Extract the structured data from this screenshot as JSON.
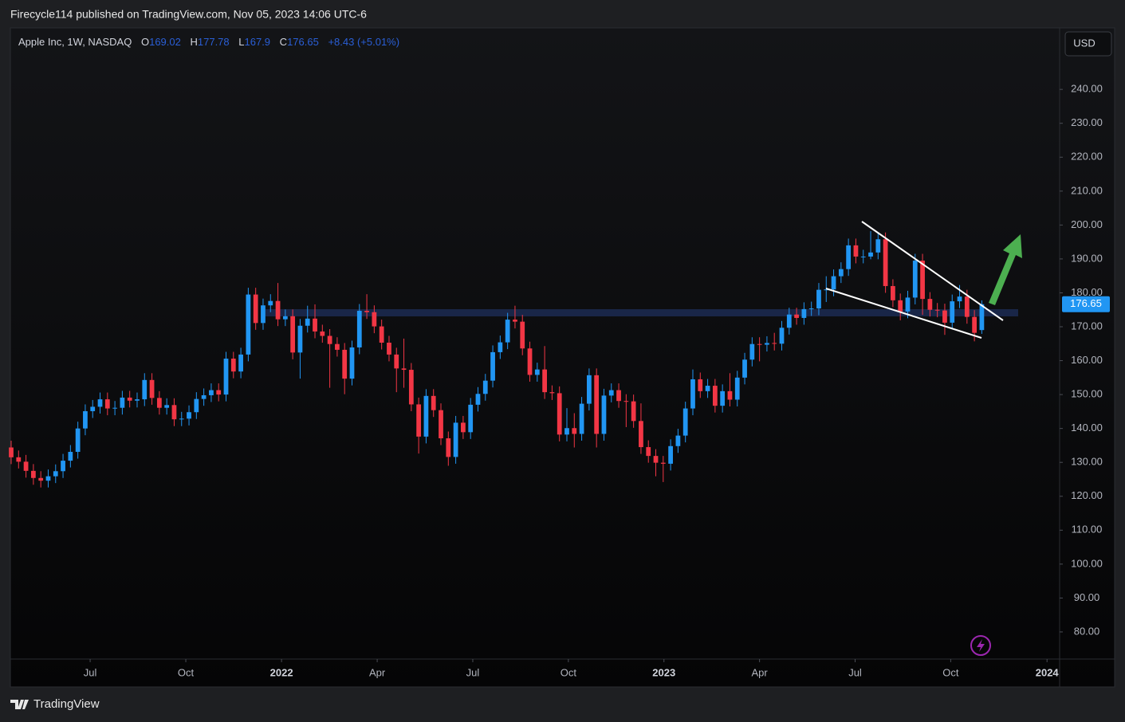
{
  "header": "Firecycle114 published on TradingView.com, Nov 05, 2023 14:06 UTC-6",
  "brand": "TradingView",
  "chart_data": {
    "type": "candlestick",
    "symbol": "Apple Inc, 1W, NASDAQ",
    "ohlc_letters": [
      "O",
      "H",
      "L",
      "C"
    ],
    "change_label": "+8.43 (+5.01%)",
    "currency": "USD",
    "up_color": "#2196f3",
    "down_color": "#f23645",
    "open": [
      134.4,
      131.5,
      130.2,
      127.5,
      125.4,
      124.6,
      125.9,
      127.4,
      130.5,
      133.1,
      140.0,
      145.1,
      146.4,
      148.6,
      145.9,
      146.1,
      149.1,
      148.2,
      148.6,
      154.3,
      149.0,
      146.1,
      146.9,
      142.7,
      142.9,
      144.8,
      148.7,
      149.8,
      151.3,
      150.0,
      160.6,
      156.8,
      161.8,
      179.5,
      171.1,
      176.3,
      177.6,
      172.2,
      173.1,
      162.4,
      170.3,
      172.4,
      168.6,
      167.3,
      164.9,
      163.2,
      154.7,
      163.9,
      174.7,
      174.3,
      170.1,
      165.3,
      161.8,
      157.7,
      157.3,
      147.1,
      137.6,
      149.6,
      145.4,
      137.1,
      131.6,
      141.7,
      138.9,
      147.0,
      150.2,
      154.1,
      162.5,
      165.4,
      172.1,
      171.5,
      163.6,
      155.8,
      157.4,
      150.7,
      150.4,
      138.2,
      140.1,
      138.4,
      147.3,
      155.7,
      138.4,
      149.7,
      151.3,
      148.1,
      148.0,
      142.2,
      134.5,
      131.9,
      129.9,
      129.6,
      134.8,
      137.9,
      145.9,
      154.5,
      151.0,
      152.6,
      146.7,
      151.0,
      148.5,
      155.0,
      160.3,
      164.9,
      164.7,
      165.2,
      165.0,
      169.7,
      173.6,
      172.6,
      175.2,
      175.4,
      180.9,
      181.0,
      184.9,
      187.0,
      194.0,
      190.7,
      190.7,
      191.9,
      195.8,
      182.0,
      177.8,
      174.5,
      178.6,
      189.5,
      178.2,
      175.0,
      174.8,
      171.2,
      177.5,
      178.9,
      172.9,
      169.02
    ],
    "high": [
      136.4,
      133.5,
      132.2,
      129.5,
      127.4,
      127.9,
      129.4,
      132.5,
      135.1,
      142.0,
      147.1,
      148.4,
      150.6,
      150.6,
      148.1,
      151.1,
      151.1,
      150.6,
      156.3,
      156.3,
      151.0,
      148.9,
      148.9,
      144.9,
      146.8,
      150.7,
      151.8,
      153.3,
      153.3,
      162.6,
      162.6,
      163.8,
      181.5,
      181.5,
      178.3,
      179.6,
      182.9,
      175.1,
      175.1,
      172.3,
      176.2,
      176.6,
      170.6,
      169.3,
      166.9,
      165.2,
      165.9,
      176.7,
      179.6,
      176.3,
      172.1,
      167.3,
      163.8,
      166.5,
      159.3,
      149.1,
      151.6,
      151.6,
      147.4,
      139.1,
      143.7,
      143.7,
      149.0,
      152.2,
      156.1,
      164.5,
      167.4,
      174.1,
      176.2,
      173.5,
      165.6,
      159.4,
      164.3,
      152.7,
      152.4,
      146.0,
      144.5,
      149.3,
      157.7,
      157.7,
      151.7,
      153.3,
      153.3,
      150.1,
      150.0,
      147.4,
      136.5,
      133.9,
      131.9,
      136.8,
      139.9,
      147.9,
      157.4,
      156.5,
      154.6,
      154.6,
      153.0,
      156.3,
      157.0,
      162.3,
      166.9,
      166.9,
      167.2,
      168.2,
      171.7,
      175.6,
      175.6,
      177.2,
      177.4,
      182.9,
      184.9,
      186.9,
      189.0,
      196.0,
      196.0,
      192.7,
      198.2,
      197.8,
      197.8,
      184.0,
      179.8,
      180.6,
      191.5,
      191.5,
      180.2,
      177.0,
      176.8,
      179.5,
      182.3,
      180.9,
      174.9,
      177.78
    ],
    "low": [
      129.5,
      128.2,
      125.5,
      123.4,
      122.6,
      122.6,
      123.9,
      125.4,
      128.5,
      131.1,
      138.0,
      143.1,
      144.4,
      143.9,
      143.9,
      144.1,
      146.2,
      146.2,
      146.6,
      147.0,
      144.1,
      144.1,
      140.7,
      140.7,
      140.9,
      142.8,
      146.7,
      147.8,
      148.0,
      148.0,
      154.8,
      154.8,
      159.8,
      169.1,
      169.1,
      174.3,
      170.2,
      170.2,
      160.4,
      154.7,
      168.3,
      166.6,
      165.3,
      152.0,
      161.2,
      150.1,
      152.7,
      161.9,
      172.3,
      168.1,
      163.3,
      159.8,
      150.7,
      152.0,
      145.1,
      132.6,
      135.6,
      143.4,
      135.1,
      129.0,
      129.6,
      136.9,
      136.9,
      145.0,
      148.2,
      152.1,
      160.5,
      163.4,
      169.5,
      161.6,
      153.8,
      153.8,
      148.7,
      148.4,
      136.2,
      136.2,
      134.4,
      136.4,
      145.3,
      134.4,
      136.4,
      147.7,
      146.1,
      140.4,
      140.2,
      132.5,
      129.9,
      125.9,
      124.2,
      127.6,
      132.8,
      135.9,
      143.9,
      149.0,
      149.0,
      144.7,
      144.7,
      146.5,
      146.5,
      153.0,
      158.3,
      159.8,
      162.7,
      163.0,
      163.0,
      167.7,
      170.6,
      170.6,
      173.2,
      173.4,
      177.3,
      179.0,
      182.9,
      185.0,
      188.7,
      188.7,
      189.9,
      189.9,
      180.0,
      175.8,
      171.9,
      172.5,
      176.6,
      173.5,
      173.0,
      172.8,
      167.6,
      169.2,
      175.5,
      170.9,
      165.7,
      167.9
    ],
    "close": [
      131.5,
      130.2,
      127.5,
      125.4,
      124.6,
      125.9,
      127.4,
      130.5,
      133.1,
      140.0,
      145.1,
      146.4,
      148.6,
      145.9,
      146.1,
      149.1,
      148.2,
      148.6,
      154.3,
      149.0,
      146.1,
      146.9,
      142.7,
      142.9,
      144.8,
      148.7,
      149.8,
      151.3,
      150.0,
      160.6,
      156.8,
      161.8,
      179.5,
      171.1,
      176.3,
      177.6,
      172.2,
      173.1,
      162.4,
      170.3,
      172.4,
      168.6,
      167.3,
      164.9,
      163.2,
      154.7,
      163.9,
      174.7,
      174.3,
      170.1,
      165.3,
      161.8,
      157.7,
      157.3,
      147.1,
      137.6,
      149.6,
      145.4,
      137.1,
      131.6,
      141.7,
      138.9,
      147.0,
      150.2,
      154.1,
      162.5,
      165.4,
      172.1,
      171.5,
      163.6,
      155.8,
      157.4,
      150.7,
      150.4,
      138.2,
      140.1,
      138.4,
      147.3,
      155.7,
      138.4,
      149.7,
      151.3,
      148.1,
      148.0,
      142.2,
      134.5,
      131.9,
      129.9,
      129.6,
      134.8,
      137.9,
      145.9,
      154.5,
      151.0,
      152.6,
      146.7,
      151.0,
      148.5,
      155.0,
      160.3,
      164.9,
      164.7,
      165.2,
      165.0,
      169.7,
      173.6,
      172.6,
      175.2,
      175.4,
      180.9,
      181.0,
      184.9,
      187.0,
      194.0,
      190.7,
      190.7,
      191.9,
      195.8,
      182.0,
      177.8,
      174.5,
      178.6,
      189.5,
      178.2,
      175.0,
      174.8,
      171.2,
      177.5,
      178.9,
      172.9,
      168.2,
      176.65
    ],
    "xlim": [
      0,
      141.5
    ],
    "xticks": [
      {
        "value": 10.66,
        "label": "Jul"
      },
      {
        "value": 23.57,
        "label": "Oct"
      },
      {
        "value": 36.49,
        "label": "2022"
      },
      {
        "value": 49.4,
        "label": "Apr"
      },
      {
        "value": 62.3,
        "label": "Jul"
      },
      {
        "value": 75.2,
        "label": "Oct"
      },
      {
        "value": 88.1,
        "label": "2023"
      },
      {
        "value": 101.0,
        "label": "Apr"
      },
      {
        "value": 113.9,
        "label": "Jul"
      },
      {
        "value": 126.8,
        "label": "Oct"
      },
      {
        "value": 139.8,
        "label": "2024"
      }
    ],
    "ylim": [
      72.0,
      257.9
    ],
    "yticks": [
      {
        "value": 80,
        "label": "80.00"
      },
      {
        "value": 90,
        "label": "90.00"
      },
      {
        "value": 100,
        "label": "100.00"
      },
      {
        "value": 110,
        "label": "110.00"
      },
      {
        "value": 120,
        "label": "120.00"
      },
      {
        "value": 130,
        "label": "130.00"
      },
      {
        "value": 140,
        "label": "140.00"
      },
      {
        "value": 150,
        "label": "150.00"
      },
      {
        "value": 160,
        "label": "160.00"
      },
      {
        "value": 170,
        "label": "170.00"
      },
      {
        "value": 180,
        "label": "180.00"
      },
      {
        "value": 190,
        "label": "190.00"
      },
      {
        "value": 200,
        "label": "200.00"
      },
      {
        "value": 210,
        "label": "210.00"
      },
      {
        "value": 220,
        "label": "220.00"
      },
      {
        "value": 230,
        "label": "230.00"
      },
      {
        "value": 240,
        "label": "240.00"
      }
    ]
  }
}
